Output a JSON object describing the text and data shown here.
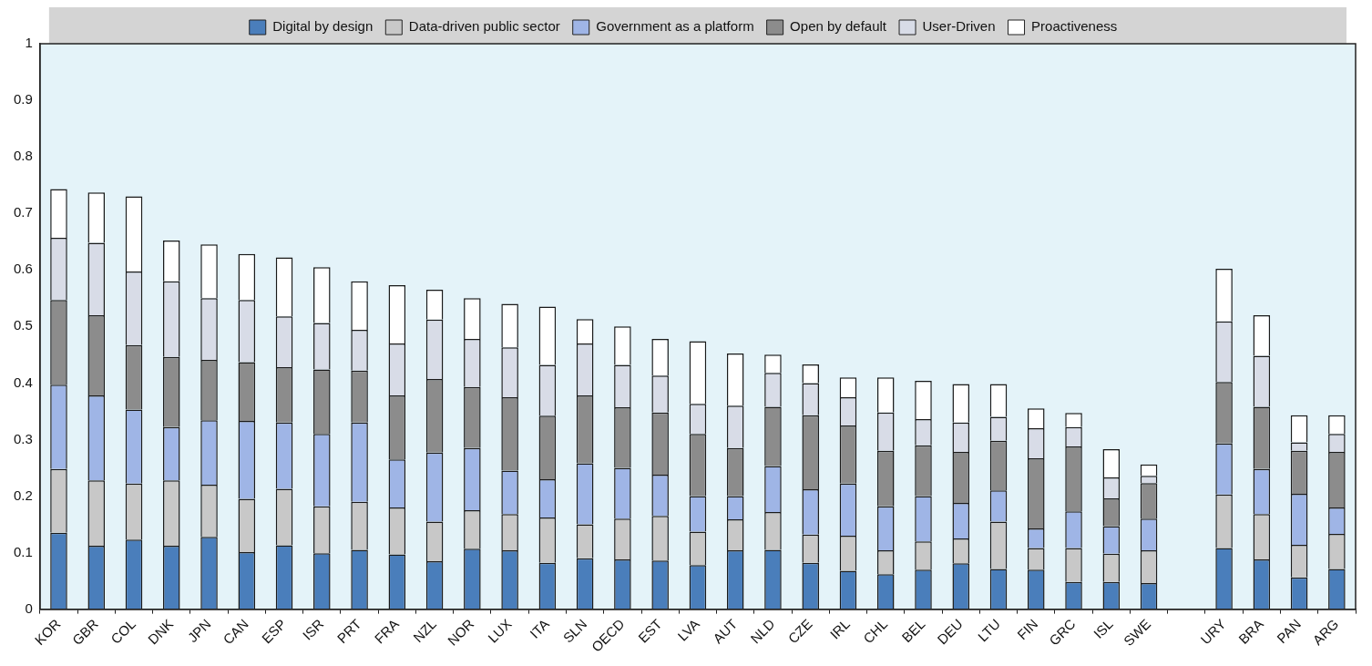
{
  "chart_data": {
    "type": "bar",
    "stacked": true,
    "legend": "top",
    "categories": [
      "KOR",
      "GBR",
      "COL",
      "DNK",
      "JPN",
      "CAN",
      "ESP",
      "ISR",
      "PRT",
      "FRA",
      "NZL",
      "NOR",
      "LUX",
      "ITA",
      "SLN",
      "OECD",
      "EST",
      "LVA",
      "AUT",
      "NLD",
      "CZE",
      "IRL",
      "CHL",
      "BEL",
      "DEU",
      "LTU",
      "FIN",
      "GRC",
      "ISL",
      "SWE",
      null,
      "URY",
      "BRA",
      "PAN",
      "ARG"
    ],
    "ylim": [
      0,
      1
    ],
    "yticks": [
      0,
      0.1,
      0.2,
      0.3,
      0.4,
      0.5,
      0.6,
      0.7,
      0.8,
      0.9,
      1
    ],
    "series": [
      {
        "name": "Digital by design",
        "color": "#4a7ebb",
        "values": [
          0.135,
          0.112,
          0.123,
          0.112,
          0.128,
          0.101,
          0.113,
          0.099,
          0.105,
          0.097,
          0.085,
          0.107,
          0.104,
          0.082,
          0.09,
          0.088,
          0.086,
          0.078,
          0.104,
          0.105,
          0.082,
          0.068,
          0.062,
          0.07,
          0.081,
          0.071,
          0.07,
          0.048,
          0.048,
          0.046,
          null,
          0.108,
          0.088,
          0.056,
          0.071
        ]
      },
      {
        "name": "Data-driven public sector",
        "color": "#c8c8c8",
        "values": [
          0.113,
          0.116,
          0.099,
          0.116,
          0.092,
          0.094,
          0.1,
          0.083,
          0.085,
          0.083,
          0.07,
          0.068,
          0.064,
          0.08,
          0.06,
          0.072,
          0.079,
          0.059,
          0.055,
          0.067,
          0.05,
          0.062,
          0.042,
          0.05,
          0.044,
          0.084,
          0.038,
          0.06,
          0.05,
          0.058,
          null,
          0.095,
          0.08,
          0.058,
          0.062
        ]
      },
      {
        "name": "Government as a platform",
        "color": "#9fb5e6",
        "values": [
          0.149,
          0.15,
          0.131,
          0.094,
          0.114,
          0.138,
          0.117,
          0.128,
          0.14,
          0.085,
          0.122,
          0.11,
          0.077,
          0.068,
          0.108,
          0.09,
          0.073,
          0.063,
          0.041,
          0.081,
          0.08,
          0.092,
          0.078,
          0.08,
          0.063,
          0.055,
          0.035,
          0.065,
          0.049,
          0.056,
          null,
          0.09,
          0.08,
          0.09,
          0.047
        ]
      },
      {
        "name": "Open by default",
        "color": "#8c8c8c",
        "values": [
          0.15,
          0.142,
          0.114,
          0.124,
          0.107,
          0.104,
          0.098,
          0.114,
          0.092,
          0.113,
          0.13,
          0.108,
          0.13,
          0.112,
          0.12,
          0.107,
          0.11,
          0.11,
          0.085,
          0.105,
          0.131,
          0.103,
          0.098,
          0.09,
          0.09,
          0.088,
          0.124,
          0.115,
          0.049,
          0.063,
          null,
          0.109,
          0.11,
          0.076,
          0.098
        ]
      },
      {
        "name": "User-Driven",
        "color": "#d8dce7",
        "values": [
          0.11,
          0.128,
          0.13,
          0.134,
          0.109,
          0.11,
          0.09,
          0.082,
          0.072,
          0.092,
          0.105,
          0.085,
          0.088,
          0.09,
          0.092,
          0.075,
          0.065,
          0.053,
          0.075,
          0.06,
          0.057,
          0.05,
          0.068,
          0.046,
          0.052,
          0.042,
          0.053,
          0.034,
          0.037,
          0.013,
          null,
          0.107,
          0.09,
          0.015,
          0.032
        ]
      },
      {
        "name": "Proactiveness",
        "color": "#ffffff",
        "values": [
          0.086,
          0.089,
          0.133,
          0.072,
          0.095,
          0.081,
          0.104,
          0.099,
          0.086,
          0.103,
          0.053,
          0.072,
          0.077,
          0.103,
          0.043,
          0.068,
          0.065,
          0.111,
          0.092,
          0.032,
          0.033,
          0.035,
          0.062,
          0.068,
          0.068,
          0.058,
          0.035,
          0.025,
          0.05,
          0.02,
          null,
          0.093,
          0.072,
          0.048,
          0.033
        ]
      }
    ]
  }
}
